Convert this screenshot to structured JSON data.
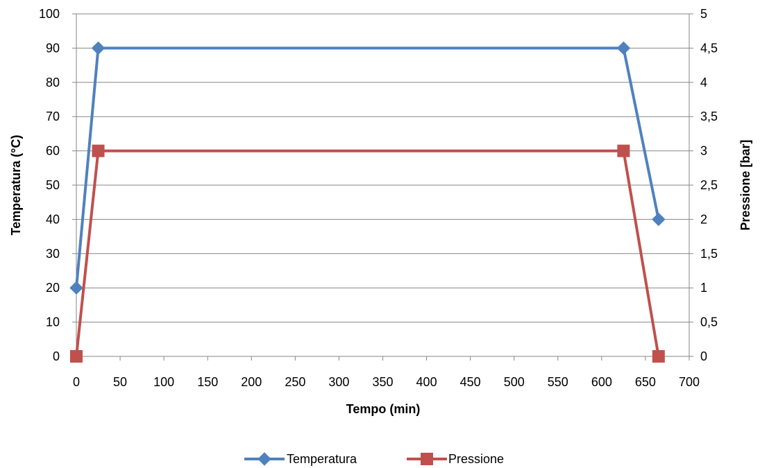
{
  "chart_data": {
    "type": "line",
    "xlabel": "Tempo (min)",
    "ylabel": "Temperatura (°C)",
    "y2label": "Pressione [bar]",
    "xlim": [
      0,
      700
    ],
    "ylim": [
      0,
      100
    ],
    "y2lim": [
      0,
      5
    ],
    "x_ticks": [
      0,
      50,
      100,
      150,
      200,
      250,
      300,
      350,
      400,
      450,
      500,
      550,
      600,
      650,
      700
    ],
    "x_tick_labels": [
      "0",
      "50",
      "100",
      "150",
      "200",
      "250",
      "300",
      "350",
      "400",
      "450",
      "500",
      "550",
      "600",
      "650",
      "700"
    ],
    "y_ticks": [
      0,
      10,
      20,
      30,
      40,
      50,
      60,
      70,
      80,
      90,
      100
    ],
    "y_tick_labels": [
      "0",
      "10",
      "20",
      "30",
      "40",
      "50",
      "60",
      "70",
      "80",
      "90",
      "100"
    ],
    "y2_ticks": [
      0,
      0.5,
      1,
      1.5,
      2,
      2.5,
      3,
      3.5,
      4,
      4.5,
      5
    ],
    "y2_tick_labels": [
      "0",
      "0,5",
      "1",
      "1,5",
      "2",
      "2,5",
      "3",
      "3,5",
      "4",
      "4,5",
      "5"
    ],
    "grid": true,
    "legend_position": "bottom",
    "series": [
      {
        "name": "Temperatura",
        "axis": "left",
        "color": "#4F81BD",
        "marker": "diamond",
        "x": [
          0,
          25,
          625,
          665
        ],
        "y": [
          20,
          90,
          90,
          40
        ]
      },
      {
        "name": "Pressione",
        "axis": "right",
        "color": "#C0504D",
        "marker": "square",
        "x": [
          0,
          25,
          625,
          665
        ],
        "y": [
          0,
          3,
          3,
          0
        ]
      }
    ]
  }
}
